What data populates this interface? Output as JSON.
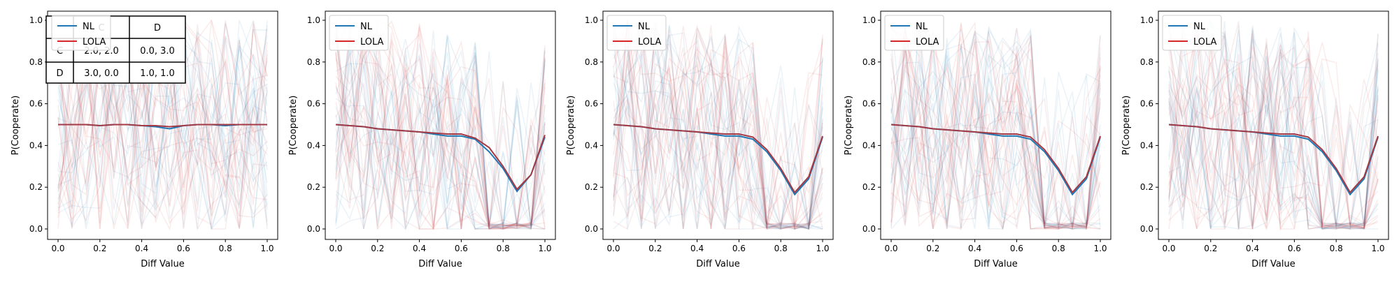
{
  "figure": {
    "xlabel": "Diff Value",
    "ylabel": "P(Cooperate)",
    "xticks": [
      "0.0",
      "0.2",
      "0.4",
      "0.6",
      "0.8",
      "1.0"
    ],
    "yticks": [
      "0.0",
      "0.2",
      "0.4",
      "0.6",
      "0.8",
      "1.0"
    ],
    "legend": [
      "NL",
      "LOLA"
    ],
    "colors": {
      "NL": "#1f77b4",
      "LOLA": "#d62728",
      "mean": "#a33a45"
    }
  },
  "payoff_table": {
    "col_headers": [
      "C",
      "D"
    ],
    "rows": [
      {
        "label": "C",
        "cells": [
          "2.0, 2.0",
          "0.0, 3.0"
        ]
      },
      {
        "label": "D",
        "cells": [
          "3.0, 0.0",
          "1.0, 1.0"
        ]
      }
    ]
  },
  "chart_data": [
    {
      "type": "line",
      "x": [
        0.0,
        0.0667,
        0.1333,
        0.2,
        0.2667,
        0.3333,
        0.4,
        0.4667,
        0.5333,
        0.6,
        0.6667,
        0.7333,
        0.8,
        0.8667,
        0.9333,
        1.0
      ],
      "series": [
        {
          "name": "NL",
          "values": [
            0.5,
            0.5,
            0.5,
            0.495,
            0.5,
            0.5,
            0.495,
            0.49,
            0.48,
            0.495,
            0.5,
            0.5,
            0.495,
            0.5,
            0.5,
            0.5
          ]
        },
        {
          "name": "LOLA",
          "values": [
            0.5,
            0.5,
            0.5,
            0.495,
            0.5,
            0.5,
            0.495,
            0.495,
            0.49,
            0.495,
            0.5,
            0.5,
            0.5,
            0.5,
            0.5,
            0.5
          ]
        }
      ],
      "xlabel": "Diff Value",
      "ylabel": "P(Cooperate)",
      "xlim": [
        0,
        1
      ],
      "ylim": [
        0,
        1
      ],
      "legend_position": "top-left"
    },
    {
      "type": "line",
      "x": [
        0.0,
        0.0667,
        0.1333,
        0.2,
        0.2667,
        0.3333,
        0.4,
        0.4667,
        0.5333,
        0.6,
        0.6667,
        0.7333,
        0.8,
        0.8667,
        0.9333,
        1.0
      ],
      "series": [
        {
          "name": "NL",
          "values": [
            0.5,
            0.495,
            0.49,
            0.48,
            0.475,
            0.47,
            0.465,
            0.455,
            0.445,
            0.445,
            0.43,
            0.37,
            0.29,
            0.18,
            0.26,
            0.44
          ]
        },
        {
          "name": "LOLA",
          "values": [
            0.5,
            0.495,
            0.49,
            0.48,
            0.475,
            0.47,
            0.465,
            0.46,
            0.455,
            0.455,
            0.435,
            0.39,
            0.3,
            0.19,
            0.26,
            0.45
          ]
        }
      ],
      "xlabel": "Diff Value",
      "ylabel": "P(Cooperate)",
      "xlim": [
        0,
        1
      ],
      "ylim": [
        0,
        1
      ],
      "legend_position": "top-left"
    },
    {
      "type": "line",
      "x": [
        0.0,
        0.0667,
        0.1333,
        0.2,
        0.2667,
        0.3333,
        0.4,
        0.4667,
        0.5333,
        0.6,
        0.6667,
        0.7333,
        0.8,
        0.8667,
        0.9333,
        1.0
      ],
      "series": [
        {
          "name": "NL",
          "values": [
            0.5,
            0.495,
            0.49,
            0.48,
            0.475,
            0.47,
            0.465,
            0.455,
            0.445,
            0.445,
            0.43,
            0.37,
            0.28,
            0.165,
            0.24,
            0.44
          ]
        },
        {
          "name": "LOLA",
          "values": [
            0.5,
            0.495,
            0.49,
            0.48,
            0.475,
            0.47,
            0.465,
            0.46,
            0.455,
            0.455,
            0.44,
            0.38,
            0.29,
            0.175,
            0.25,
            0.445
          ]
        }
      ],
      "xlabel": "Diff Value",
      "ylabel": "P(Cooperate)",
      "xlim": [
        0,
        1
      ],
      "ylim": [
        0,
        1
      ],
      "legend_position": "top-left"
    },
    {
      "type": "line",
      "x": [
        0.0,
        0.0667,
        0.1333,
        0.2,
        0.2667,
        0.3333,
        0.4,
        0.4667,
        0.5333,
        0.6,
        0.6667,
        0.7333,
        0.8,
        0.8667,
        0.9333,
        1.0
      ],
      "series": [
        {
          "name": "NL",
          "values": [
            0.5,
            0.495,
            0.49,
            0.48,
            0.475,
            0.47,
            0.465,
            0.455,
            0.445,
            0.445,
            0.43,
            0.37,
            0.28,
            0.165,
            0.24,
            0.44
          ]
        },
        {
          "name": "LOLA",
          "values": [
            0.5,
            0.495,
            0.49,
            0.48,
            0.475,
            0.47,
            0.465,
            0.46,
            0.455,
            0.455,
            0.44,
            0.38,
            0.29,
            0.175,
            0.25,
            0.445
          ]
        }
      ],
      "xlabel": "Diff Value",
      "ylabel": "P(Cooperate)",
      "xlim": [
        0,
        1
      ],
      "ylim": [
        0,
        1
      ],
      "legend_position": "top-left"
    },
    {
      "type": "line",
      "x": [
        0.0,
        0.0667,
        0.1333,
        0.2,
        0.2667,
        0.3333,
        0.4,
        0.4667,
        0.5333,
        0.6,
        0.6667,
        0.7333,
        0.8,
        0.8667,
        0.9333,
        1.0
      ],
      "series": [
        {
          "name": "NL",
          "values": [
            0.5,
            0.495,
            0.49,
            0.48,
            0.475,
            0.47,
            0.465,
            0.455,
            0.445,
            0.445,
            0.43,
            0.37,
            0.28,
            0.165,
            0.24,
            0.44
          ]
        },
        {
          "name": "LOLA",
          "values": [
            0.5,
            0.495,
            0.49,
            0.48,
            0.475,
            0.47,
            0.465,
            0.46,
            0.455,
            0.455,
            0.44,
            0.38,
            0.29,
            0.175,
            0.25,
            0.445
          ]
        }
      ],
      "xlabel": "Diff Value",
      "ylabel": "P(Cooperate)",
      "xlim": [
        0,
        1
      ],
      "ylim": [
        0,
        1
      ],
      "legend_position": "top-left"
    }
  ]
}
